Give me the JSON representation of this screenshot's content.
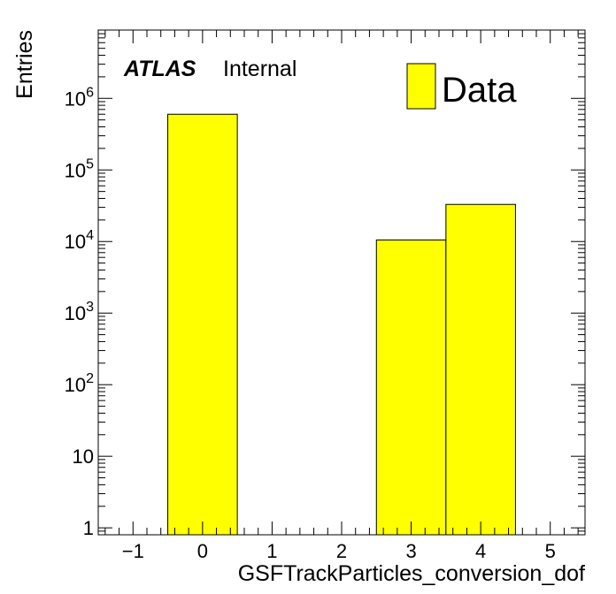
{
  "chart_data": {
    "type": "bar",
    "histogram": true,
    "x": {
      "label": "GSFTrackParticles_conversion_dof",
      "range": [
        -1.5,
        5.5
      ],
      "tick_labels": [
        "−1",
        "0",
        "1",
        "2",
        "3",
        "4",
        "5"
      ]
    },
    "y": {
      "label": "Entries",
      "scale": "log",
      "range": [
        0.8,
        9000000
      ],
      "tick_labels": [
        {
          "value": 1,
          "base": "1",
          "exp": ""
        },
        {
          "value": 10,
          "base": "10",
          "exp": ""
        },
        {
          "value": 100,
          "base": "10",
          "exp": "2"
        },
        {
          "value": 1000,
          "base": "10",
          "exp": "3"
        },
        {
          "value": 10000,
          "base": "10",
          "exp": "4"
        },
        {
          "value": 100000,
          "base": "10",
          "exp": "5"
        },
        {
          "value": 1000000,
          "base": "10",
          "exp": "6"
        }
      ]
    },
    "bins": [
      {
        "low": -0.5,
        "high": 0.5,
        "value": 600000
      },
      {
        "low": 0.5,
        "high": 1.5,
        "value": 0
      },
      {
        "low": 1.5,
        "high": 2.5,
        "value": 0
      },
      {
        "low": 2.5,
        "high": 3.5,
        "value": 10500
      },
      {
        "low": 3.5,
        "high": 4.5,
        "value": 33000
      }
    ],
    "series": [
      {
        "name": "Data",
        "color": "#ffff00"
      }
    ],
    "legend_position": "top-right",
    "experiment_label": {
      "bold": "ATLAS",
      "status": "Internal"
    }
  }
}
